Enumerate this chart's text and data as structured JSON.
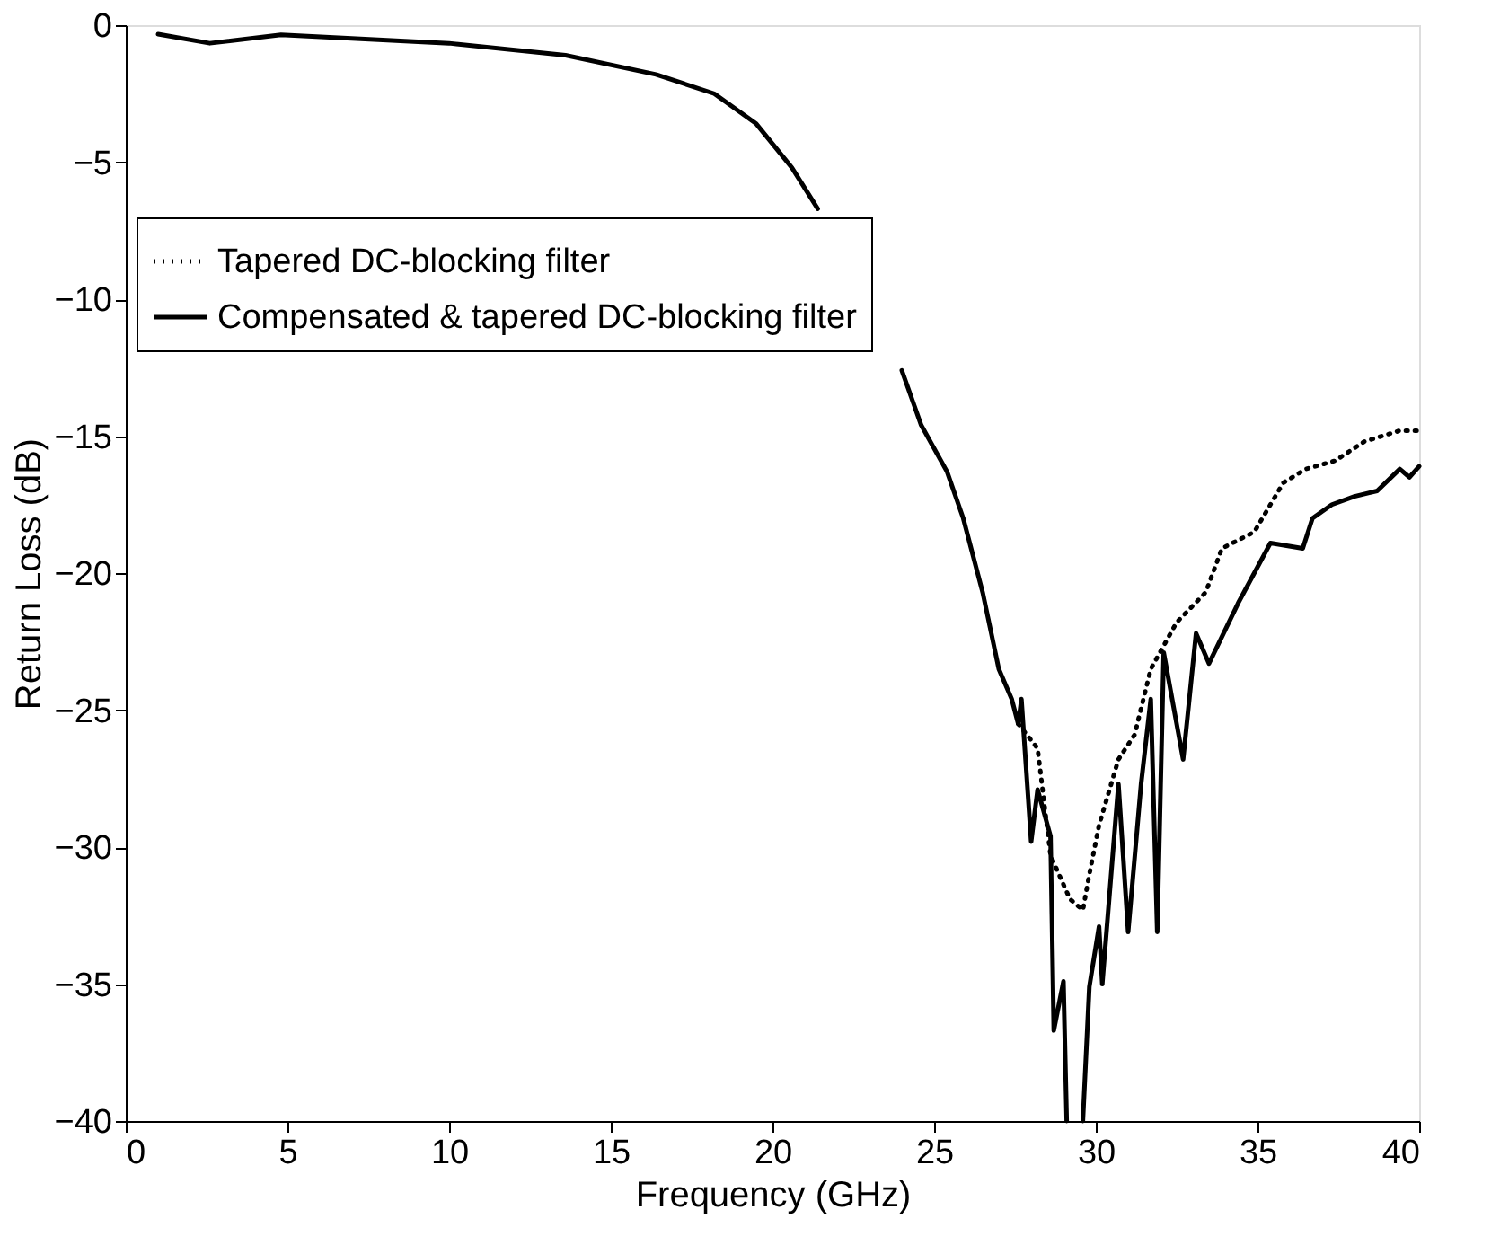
{
  "chart_data": {
    "type": "line",
    "xlabel": "Frequency (GHz)",
    "ylabel": "Return Loss (dB)",
    "xlim": [
      0,
      40
    ],
    "ylim": [
      -40,
      0
    ],
    "xticks": [
      0,
      5,
      10,
      15,
      20,
      25,
      30,
      35,
      40
    ],
    "yticks": [
      -40,
      -35,
      -30,
      -25,
      -20,
      -15,
      -10,
      -5,
      0
    ],
    "grid": false,
    "legend": "top",
    "marker": "none",
    "series": [
      {
        "name": "Tapered DC-blocking filter",
        "color": "#000000",
        "line_style": "dotted",
        "x": [
          27.6,
          28.2,
          28.6,
          29.2,
          29.6,
          29.8,
          30.1,
          30.7,
          31.2,
          31.7,
          32.5,
          33.4,
          33.9,
          34.9,
          35.8,
          36.5,
          37.4,
          38.3,
          39.4,
          40
        ],
        "values": [
          -25.5,
          -26.4,
          -30.3,
          -31.9,
          -32.3,
          -31.0,
          -29.2,
          -26.8,
          -25.9,
          -23.5,
          -21.8,
          -20.7,
          -19.1,
          -18.5,
          -16.7,
          -16.2,
          -15.9,
          -15.2,
          -14.8,
          -14.8
        ]
      },
      {
        "name": "Compensated & tapered DC-blocking filter",
        "color": "#000000",
        "line_style": "solid",
        "x": [
          1.0,
          2.6,
          4.8,
          10.0,
          13.6,
          16.4,
          18.2,
          19.5,
          20.6,
          21.4,
          22.5,
          24.0,
          24.6,
          25.4,
          25.9,
          26.5,
          27.0,
          27.4,
          27.6,
          27.7,
          28.0,
          28.2,
          28.6,
          28.7,
          29.0,
          29.1,
          29.4,
          29.6,
          29.8,
          30.1,
          30.2,
          30.7,
          31.0,
          31.4,
          31.7,
          31.9,
          32.1,
          32.7,
          33.1,
          33.5,
          34.4,
          34.9,
          35.4,
          36.4,
          36.7,
          37.3,
          38.0,
          38.7,
          39.4,
          39.7,
          40.0
        ],
        "values": [
          -0.33,
          -0.66,
          -0.35,
          -0.66,
          -1.1,
          -1.8,
          -2.5,
          -3.6,
          -5.2,
          -6.7,
          null,
          -12.6,
          -14.6,
          -16.3,
          -18.0,
          -20.7,
          -23.5,
          -24.6,
          -25.5,
          -24.6,
          -29.8,
          -27.9,
          -29.6,
          -36.7,
          -34.9,
          -40,
          null,
          -40,
          -35.1,
          -32.9,
          -35.0,
          -27.7,
          -33.1,
          -27.7,
          -24.6,
          -33.1,
          -22.9,
          -26.8,
          -22.2,
          -23.3,
          -21.1,
          -20.0,
          -18.9,
          -19.1,
          -18.0,
          -17.5,
          -17.2,
          -17.0,
          -16.2,
          -16.5,
          -16.1
        ]
      }
    ]
  }
}
